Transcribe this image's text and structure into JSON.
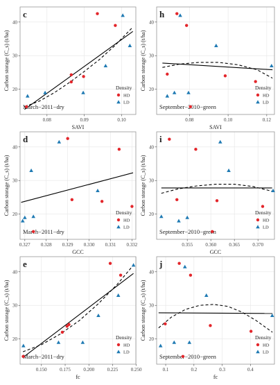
{
  "colors": {
    "HD": "#e3262b",
    "LD": "#1f7ab3",
    "line": "#000000",
    "grid": "#e6e6e6",
    "frame": "#888888"
  },
  "legend": {
    "title": "Density",
    "items": [
      "HD",
      "LD"
    ]
  },
  "ylabel": "Carbon storage (C_s) (t/ha)",
  "chart_data": [
    {
      "type": "scatter",
      "letter": "c",
      "annotation": "March−2011−dry",
      "xlabel": "SAVI",
      "xlim": [
        0.0728,
        0.1038
      ],
      "ylim": [
        12.5,
        44.5
      ],
      "xticks": [
        0.08,
        0.09,
        0.1
      ],
      "xtick_labels": [
        "0.08",
        "0.09",
        "0.10"
      ],
      "yticks": [
        20,
        30,
        40
      ],
      "ytick_labels": [
        "20",
        "30",
        "40"
      ],
      "linear": [
        [
          0.074,
          14.0
        ],
        [
          0.103,
          37.2
        ]
      ],
      "quad": [
        [
          0.074,
          14.8
        ],
        [
          0.078,
          16.5
        ],
        [
          0.082,
          19.0
        ],
        [
          0.086,
          22.0
        ],
        [
          0.09,
          25.3
        ],
        [
          0.094,
          28.8
        ],
        [
          0.098,
          32.8
        ],
        [
          0.103,
          38.5
        ]
      ],
      "series": [
        {
          "name": "HD",
          "points": [
            [
              0.0745,
              14.8
            ],
            [
              0.0865,
              24.3
            ],
            [
              0.0865,
              22.2
            ],
            [
              0.0898,
              23.8
            ],
            [
              0.0935,
              42.5
            ],
            [
              0.0983,
              39.0
            ]
          ]
        },
        {
          "name": "LD",
          "points": [
            [
              0.0748,
              18.0
            ],
            [
              0.0795,
              19.0
            ],
            [
              0.0897,
              19.0
            ],
            [
              0.0957,
              27.0
            ],
            [
              0.1003,
              42.0
            ],
            [
              0.1022,
              33.0
            ]
          ]
        }
      ]
    },
    {
      "type": "scatter",
      "letter": "h",
      "annotation": "September−2010−green",
      "xlabel": "SAVI",
      "xlim": [
        0.063,
        0.124
      ],
      "ylim": [
        12.5,
        44.5
      ],
      "xticks": [
        0.08,
        0.1,
        0.12
      ],
      "xtick_labels": [
        "0.08",
        "0.10",
        "0.12"
      ],
      "yticks": [
        20,
        30,
        40
      ],
      "ytick_labels": [
        "20",
        "30",
        "40"
      ],
      "linear": [
        [
          0.066,
          27.8
        ],
        [
          0.123,
          25.8
        ]
      ],
      "quad": [
        [
          0.066,
          26.5
        ],
        [
          0.075,
          27.5
        ],
        [
          0.085,
          28.0
        ],
        [
          0.095,
          28.0
        ],
        [
          0.105,
          27.3
        ],
        [
          0.115,
          25.8
        ],
        [
          0.123,
          23.3
        ]
      ],
      "series": [
        {
          "name": "HD",
          "points": [
            [
              0.0685,
              24.5
            ],
            [
              0.0735,
              42.5
            ],
            [
              0.0785,
              39.0
            ],
            [
              0.0805,
              14.8
            ],
            [
              0.0985,
              24.0
            ],
            [
              0.1142,
              22.3
            ]
          ]
        },
        {
          "name": "LD",
          "points": [
            [
              0.0685,
              18.0
            ],
            [
              0.0722,
              19.0
            ],
            [
              0.0752,
              42.0
            ],
            [
              0.0795,
              19.0
            ],
            [
              0.0938,
              33.0
            ],
            [
              0.1225,
              27.0
            ]
          ]
        }
      ]
    },
    {
      "type": "scatter",
      "letter": "d",
      "annotation": "March−2011−dry",
      "xlabel": "GCC",
      "xlim": [
        0.32678,
        0.33218
      ],
      "ylim": [
        12.5,
        44.5
      ],
      "xticks": [
        0.327,
        0.328,
        0.329,
        0.33,
        0.331,
        0.332
      ],
      "xtick_labels": [
        "0.327",
        "0.328",
        "0.329",
        "0.330",
        "0.331",
        "0.332"
      ],
      "yticks": [
        20,
        30,
        40
      ],
      "ytick_labels": [
        "20",
        "30",
        "40"
      ],
      "linear": [
        [
          0.32683,
          23.5
        ],
        [
          0.33205,
          32.3
        ]
      ],
      "quad": [],
      "series": [
        {
          "name": "HD",
          "points": [
            [
              0.3274,
              14.8
            ],
            [
              0.329,
              42.5
            ],
            [
              0.3292,
              24.3
            ],
            [
              0.3306,
              23.8
            ],
            [
              0.3314,
              39.3
            ],
            [
              0.332,
              22.3
            ]
          ]
        },
        {
          "name": "LD",
          "points": [
            [
              0.3269,
              18.0
            ],
            [
              0.327,
              19.0
            ],
            [
              0.3273,
              33.0
            ],
            [
              0.3274,
              19.3
            ],
            [
              0.3286,
              41.5
            ],
            [
              0.3304,
              27.0
            ]
          ]
        }
      ]
    },
    {
      "type": "scatter",
      "letter": "i",
      "annotation": "September−2010−green",
      "xlabel": "GCC",
      "xlim": [
        0.3485,
        0.3735
      ],
      "ylim": [
        12.5,
        44.5
      ],
      "xticks": [
        0.355,
        0.36,
        0.365,
        0.37
      ],
      "xtick_labels": [
        "0.355",
        "0.360",
        "0.365",
        "0.370"
      ],
      "yticks": [
        20,
        30,
        40
      ],
      "ytick_labels": [
        "20",
        "30",
        "40"
      ],
      "linear": [
        [
          0.3495,
          27.8
        ],
        [
          0.373,
          27.8
        ]
      ],
      "quad": [
        [
          0.3495,
          26.2
        ],
        [
          0.353,
          27.5
        ],
        [
          0.357,
          28.4
        ],
        [
          0.361,
          28.9
        ],
        [
          0.365,
          28.9
        ],
        [
          0.369,
          28.2
        ],
        [
          0.373,
          26.8
        ]
      ],
      "series": [
        {
          "name": "HD",
          "points": [
            [
              0.3512,
              42.3
            ],
            [
              0.3528,
              24.3
            ],
            [
              0.3568,
              39.3
            ],
            [
              0.3603,
              14.8
            ],
            [
              0.3613,
              24.0
            ],
            [
              0.371,
              22.3
            ]
          ]
        },
        {
          "name": "LD",
          "points": [
            [
              0.3495,
              19.3
            ],
            [
              0.3532,
              18.0
            ],
            [
              0.355,
              19.0
            ],
            [
              0.362,
              41.5
            ],
            [
              0.3638,
              33.0
            ],
            [
              0.3732,
              27.0
            ]
          ]
        }
      ]
    },
    {
      "type": "scatter",
      "letter": "e",
      "annotation": "March−2011−dry",
      "xlabel": "fc",
      "xlim": [
        0.1275,
        0.2495
      ],
      "ylim": [
        12.5,
        44.5
      ],
      "xticks": [
        0.15,
        0.175,
        0.2,
        0.225,
        0.25
      ],
      "xtick_labels": [
        "0.150",
        "0.175",
        "0.200",
        "0.225",
        "0.250"
      ],
      "yticks": [
        20,
        30,
        40
      ],
      "ytick_labels": [
        "20",
        "30",
        "40"
      ],
      "linear": [
        [
          0.1305,
          14.5
        ],
        [
          0.247,
          39.5
        ]
      ],
      "quad": [
        [
          0.1305,
          16.2
        ],
        [
          0.15,
          18.3
        ],
        [
          0.17,
          21.5
        ],
        [
          0.19,
          25.5
        ],
        [
          0.21,
          30.5
        ],
        [
          0.23,
          36.3
        ],
        [
          0.247,
          42.0
        ]
      ],
      "series": [
        {
          "name": "HD",
          "points": [
            [
              0.1308,
              14.8
            ],
            [
              0.172,
              22.0
            ],
            [
              0.177,
              23.8
            ],
            [
              0.179,
              24.3
            ],
            [
              0.2225,
              42.5
            ],
            [
              0.2335,
              39.0
            ]
          ]
        },
        {
          "name": "LD",
          "points": [
            [
              0.131,
              18.0
            ],
            [
              0.168,
              19.0
            ],
            [
              0.1935,
              19.0
            ],
            [
              0.21,
              27.0
            ],
            [
              0.231,
              33.0
            ],
            [
              0.247,
              42.0
            ]
          ]
        }
      ]
    },
    {
      "type": "scatter",
      "letter": "j",
      "annotation": "September−2010−green",
      "xlabel": "fc",
      "xlim": [
        0.068,
        0.485
      ],
      "ylim": [
        12.5,
        44.5
      ],
      "xticks": [
        0.1,
        0.2,
        0.3,
        0.4
      ],
      "xtick_labels": [
        "0.1",
        "0.2",
        "0.3",
        "0.4"
      ],
      "yticks": [
        20,
        30,
        40
      ],
      "ytick_labels": [
        "20",
        "30",
        "40"
      ],
      "linear": [
        [
          0.075,
          27.8
        ],
        [
          0.478,
          27.6
        ]
      ],
      "quad": [
        [
          0.075,
          23.3
        ],
        [
          0.12,
          26.5
        ],
        [
          0.17,
          28.8
        ],
        [
          0.22,
          30.0
        ],
        [
          0.27,
          30.3
        ],
        [
          0.32,
          29.7
        ],
        [
          0.37,
          28.0
        ],
        [
          0.42,
          25.5
        ],
        [
          0.478,
          22.0
        ]
      ],
      "series": [
        {
          "name": "HD",
          "points": [
            [
              0.0985,
              24.5
            ],
            [
              0.148,
              42.5
            ],
            [
              0.161,
              14.8
            ],
            [
              0.188,
              39.0
            ],
            [
              0.258,
              24.0
            ],
            [
              0.402,
              22.3
            ]
          ]
        },
        {
          "name": "LD",
          "points": [
            [
              0.082,
              18.0
            ],
            [
              0.13,
              19.0
            ],
            [
              0.168,
              41.5
            ],
            [
              0.184,
              19.0
            ],
            [
              0.244,
              33.0
            ],
            [
              0.477,
              27.0
            ]
          ]
        }
      ]
    }
  ]
}
